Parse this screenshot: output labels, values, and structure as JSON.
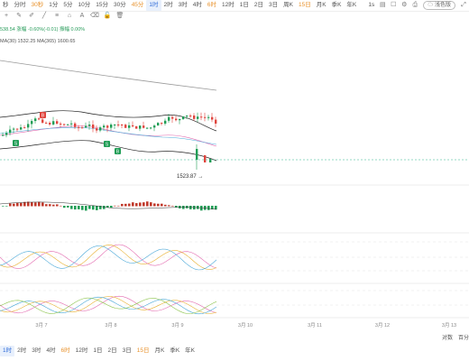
{
  "toolbar": {
    "intervals": [
      {
        "label": "秒",
        "active": false,
        "orange": false
      },
      {
        "label": "分时",
        "active": false,
        "orange": false
      },
      {
        "label": "30秒",
        "active": false,
        "orange": true
      },
      {
        "label": "1分",
        "active": false,
        "orange": false
      },
      {
        "label": "5分",
        "active": false,
        "orange": false
      },
      {
        "label": "10分",
        "active": false,
        "orange": false
      },
      {
        "label": "15分",
        "active": false,
        "orange": false
      },
      {
        "label": "30分",
        "active": false,
        "orange": false
      },
      {
        "label": "45分",
        "active": false,
        "orange": true
      },
      {
        "label": "1时",
        "active": true,
        "orange": false
      },
      {
        "label": "2时",
        "active": false,
        "orange": false
      },
      {
        "label": "3时",
        "active": false,
        "orange": false
      },
      {
        "label": "4时",
        "active": false,
        "orange": false
      },
      {
        "label": "6时",
        "active": false,
        "orange": true
      },
      {
        "label": "12时",
        "active": false,
        "orange": false
      },
      {
        "label": "1日",
        "active": false,
        "orange": false
      },
      {
        "label": "2日",
        "active": false,
        "orange": false
      },
      {
        "label": "3日",
        "active": false,
        "orange": false
      },
      {
        "label": "周K",
        "active": false,
        "orange": false
      },
      {
        "label": "15日",
        "active": false,
        "orange": true
      },
      {
        "label": "月K",
        "active": false,
        "orange": false
      },
      {
        "label": "季K",
        "active": false,
        "orange": false
      },
      {
        "label": "年K",
        "active": false,
        "orange": false
      }
    ],
    "range_label": "1s",
    "theme_label": "浅色版",
    "right_icons": [
      "candle-icon",
      "square-icon",
      "settings-icon",
      "camera-icon",
      "fullscreen-icon"
    ]
  },
  "tools": [
    "crosshair-icon",
    "pencil-icon",
    "brush-icon",
    "line-icon",
    "fib-icon",
    "shape-icon",
    "text-icon",
    "eraser-icon",
    "lock-icon",
    "trash-icon"
  ],
  "info": {
    "price_line": "538.54 涨幅 -0.60%(-0.01) 振幅 0.00%",
    "ma_line": "MA(30) 1532.25   MA(365) 1600.65"
  },
  "chart_data": {
    "type": "candlestick",
    "x_labels": [
      "3月 7",
      "3月 8",
      "3月 9",
      "3月 10",
      "3月 11",
      "3月 12",
      "3月 13"
    ],
    "min_marker": "1523.87",
    "markers": [
      "B",
      "S",
      "S",
      "B"
    ]
  },
  "bottom_bar": {
    "intervals": [
      {
        "label": "1时",
        "active": true,
        "orange": false
      },
      {
        "label": "2时",
        "active": false,
        "orange": false
      },
      {
        "label": "3时",
        "active": false,
        "orange": false
      },
      {
        "label": "4时",
        "active": false,
        "orange": false
      },
      {
        "label": "6时",
        "active": false,
        "orange": true
      },
      {
        "label": "12时",
        "active": false,
        "orange": false
      },
      {
        "label": "1日",
        "active": false,
        "orange": false
      },
      {
        "label": "2日",
        "active": false,
        "orange": false
      },
      {
        "label": "3日",
        "active": false,
        "orange": false
      },
      {
        "label": "15日",
        "active": false,
        "orange": true
      },
      {
        "label": "月K",
        "active": false,
        "orange": false
      },
      {
        "label": "季K",
        "active": false,
        "orange": false
      },
      {
        "label": "年K",
        "active": false,
        "orange": false
      }
    ],
    "right_labels": [
      "对数",
      "百分"
    ]
  }
}
